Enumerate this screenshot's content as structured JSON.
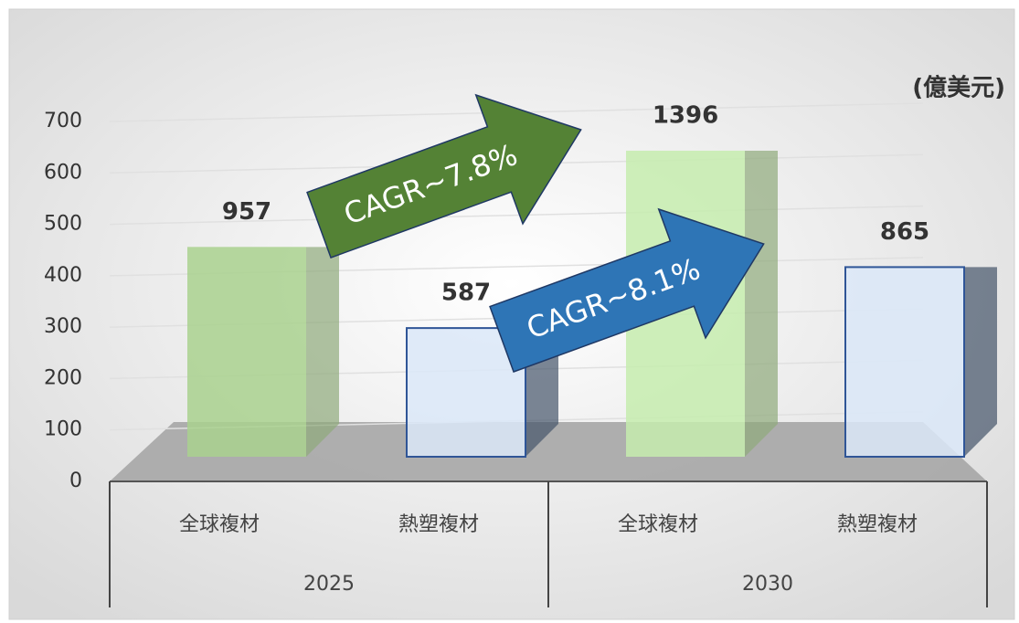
{
  "chart_data": {
    "type": "bar3d",
    "unit": "(億美元)",
    "categories": [
      "全球複材",
      "熱塑複材",
      "全球複材",
      "熱塑複材"
    ],
    "groups": [
      "2025",
      "2030"
    ],
    "values": [
      957,
      587,
      1396,
      865
    ],
    "colors": [
      "#a9d18e",
      "#dae8f8",
      "#c5ecae",
      "#dae8f8"
    ],
    "ylim": [
      0,
      700
    ],
    "yticks": [
      0,
      100,
      200,
      300,
      400,
      500,
      600,
      700
    ],
    "y2lim": [
      0,
      1500
    ],
    "grid": true,
    "annotations": [
      {
        "text": "CAGR~7.8%",
        "color": "#548235"
      },
      {
        "text": "CAGR~8.1%",
        "color": "#2e75b6"
      }
    ]
  }
}
